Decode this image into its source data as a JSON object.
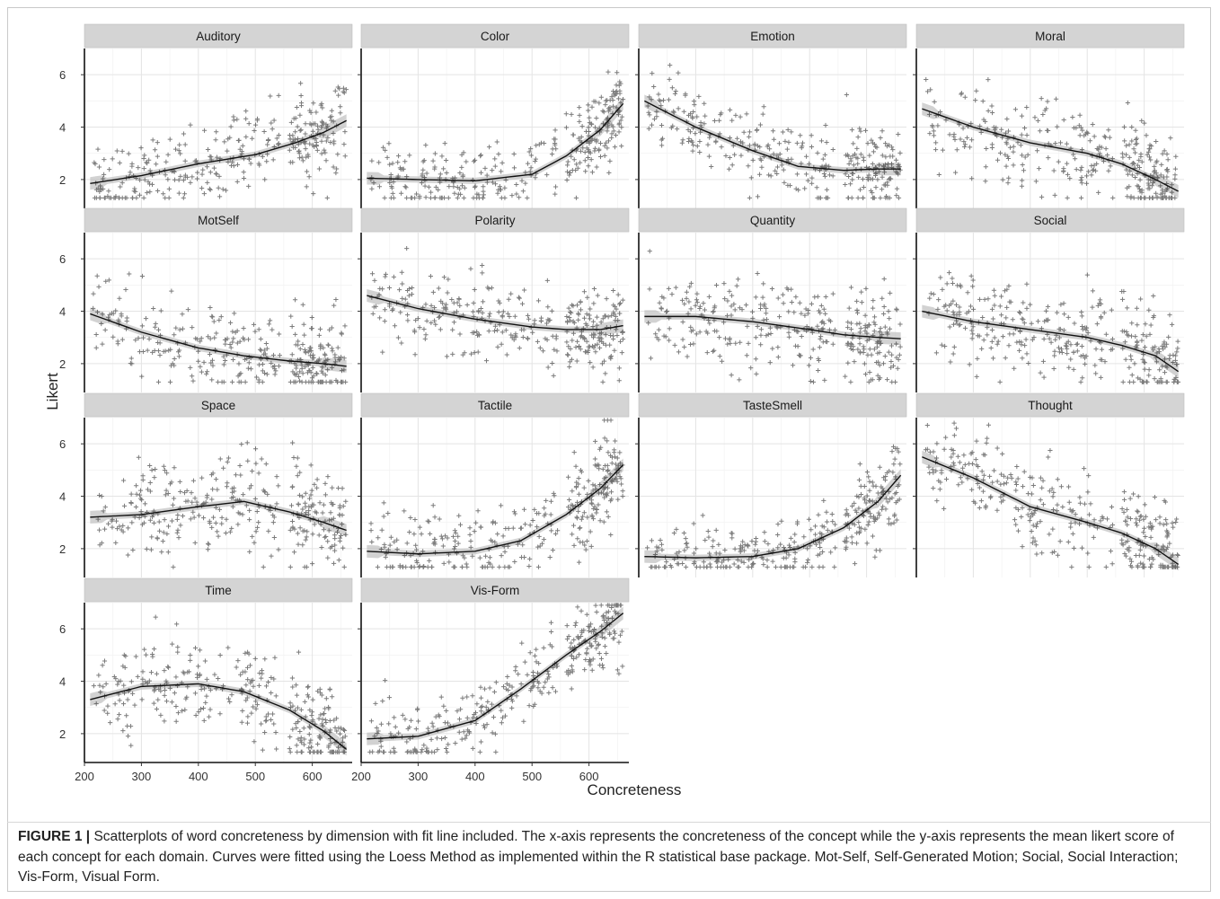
{
  "chart_data": {
    "type": "scatter",
    "title": "",
    "xlabel": "Concreteness",
    "ylabel": "Likert",
    "xlim": [
      200,
      670
    ],
    "ylim": [
      0.9,
      7.0
    ],
    "x_ticks": [
      200,
      300,
      400,
      500,
      600
    ],
    "y_ticks": [
      2,
      4,
      6
    ],
    "grid": true,
    "panels": [
      {
        "name": "Auditory",
        "trend": [
          [
            210,
            1.85
          ],
          [
            300,
            2.15
          ],
          [
            400,
            2.6
          ],
          [
            500,
            2.95
          ],
          [
            570,
            3.4
          ],
          [
            620,
            3.8
          ],
          [
            660,
            4.25
          ]
        ],
        "center": 2.4,
        "spread": 0.9
      },
      {
        "name": "Color",
        "trend": [
          [
            210,
            2.05
          ],
          [
            300,
            2.0
          ],
          [
            400,
            1.95
          ],
          [
            500,
            2.2
          ],
          [
            560,
            2.9
          ],
          [
            620,
            3.9
          ],
          [
            660,
            4.9
          ]
        ],
        "center": 2.3,
        "spread": 0.7
      },
      {
        "name": "Emotion",
        "trend": [
          [
            210,
            5.0
          ],
          [
            300,
            4.0
          ],
          [
            400,
            3.1
          ],
          [
            480,
            2.5
          ],
          [
            560,
            2.35
          ],
          [
            620,
            2.4
          ],
          [
            660,
            2.4
          ]
        ],
        "center": 3.2,
        "spread": 0.8
      },
      {
        "name": "Moral",
        "trend": [
          [
            210,
            4.7
          ],
          [
            300,
            4.0
          ],
          [
            400,
            3.4
          ],
          [
            500,
            3.0
          ],
          [
            560,
            2.6
          ],
          [
            620,
            2.0
          ],
          [
            660,
            1.55
          ]
        ],
        "center": 3.3,
        "spread": 0.9
      },
      {
        "name": "MotSelf",
        "trend": [
          [
            210,
            3.9
          ],
          [
            300,
            3.2
          ],
          [
            400,
            2.6
          ],
          [
            480,
            2.3
          ],
          [
            560,
            2.1
          ],
          [
            620,
            2.0
          ],
          [
            660,
            1.9
          ]
        ],
        "center": 2.8,
        "spread": 0.9
      },
      {
        "name": "Polarity",
        "trend": [
          [
            210,
            4.6
          ],
          [
            300,
            4.1
          ],
          [
            400,
            3.7
          ],
          [
            500,
            3.4
          ],
          [
            560,
            3.3
          ],
          [
            620,
            3.3
          ],
          [
            660,
            3.45
          ]
        ],
        "center": 3.7,
        "spread": 0.8
      },
      {
        "name": "Quantity",
        "trend": [
          [
            210,
            3.8
          ],
          [
            300,
            3.8
          ],
          [
            400,
            3.6
          ],
          [
            500,
            3.3
          ],
          [
            560,
            3.1
          ],
          [
            620,
            3.0
          ],
          [
            660,
            2.95
          ]
        ],
        "center": 3.5,
        "spread": 0.9
      },
      {
        "name": "Social",
        "trend": [
          [
            210,
            4.0
          ],
          [
            300,
            3.6
          ],
          [
            400,
            3.3
          ],
          [
            500,
            3.0
          ],
          [
            560,
            2.7
          ],
          [
            620,
            2.3
          ],
          [
            660,
            1.7
          ]
        ],
        "center": 3.1,
        "spread": 0.9
      },
      {
        "name": "Space",
        "trend": [
          [
            210,
            3.2
          ],
          [
            300,
            3.3
          ],
          [
            400,
            3.6
          ],
          [
            480,
            3.8
          ],
          [
            560,
            3.4
          ],
          [
            620,
            3.0
          ],
          [
            660,
            2.7
          ]
        ],
        "center": 3.4,
        "spread": 0.9
      },
      {
        "name": "Tactile",
        "trend": [
          [
            210,
            1.9
          ],
          [
            300,
            1.8
          ],
          [
            400,
            1.9
          ],
          [
            480,
            2.3
          ],
          [
            560,
            3.3
          ],
          [
            620,
            4.3
          ],
          [
            660,
            5.2
          ]
        ],
        "center": 2.5,
        "spread": 0.8
      },
      {
        "name": "TasteSmell",
        "trend": [
          [
            210,
            1.7
          ],
          [
            300,
            1.65
          ],
          [
            400,
            1.7
          ],
          [
            480,
            2.0
          ],
          [
            560,
            2.8
          ],
          [
            620,
            3.8
          ],
          [
            660,
            4.8
          ]
        ],
        "center": 2.0,
        "spread": 0.7
      },
      {
        "name": "Thought",
        "trend": [
          [
            210,
            5.5
          ],
          [
            300,
            4.7
          ],
          [
            400,
            3.6
          ],
          [
            500,
            3.0
          ],
          [
            560,
            2.6
          ],
          [
            620,
            2.0
          ],
          [
            660,
            1.4
          ]
        ],
        "center": 3.5,
        "spread": 0.9
      },
      {
        "name": "Time",
        "trend": [
          [
            210,
            3.3
          ],
          [
            300,
            3.8
          ],
          [
            400,
            3.9
          ],
          [
            480,
            3.6
          ],
          [
            560,
            2.9
          ],
          [
            620,
            2.1
          ],
          [
            660,
            1.4
          ]
        ],
        "center": 3.3,
        "spread": 0.9
      },
      {
        "name": "Vis-Form",
        "trend": [
          [
            210,
            1.8
          ],
          [
            300,
            1.9
          ],
          [
            400,
            2.5
          ],
          [
            480,
            3.7
          ],
          [
            560,
            5.0
          ],
          [
            620,
            5.9
          ],
          [
            660,
            6.6
          ]
        ],
        "center": 3.3,
        "spread": 0.7
      }
    ],
    "notes": "Each panel: scatter of word concreteness vs mean Likert rating with a Loess fit line and grey confidence band; individual points are approximated."
  },
  "caption": {
    "label": "FIGURE 1 |",
    "text": " Scatterplots of word concreteness by dimension with fit line included. The x-axis represents the concreteness of the concept while the y-axis represents the mean likert score of each concept for each domain. Curves were fitted using the Loess Method as implemented within the R statistical base package. Mot-Self, Self-Generated Motion; Social, Social Interaction; Vis-Form, Visual Form."
  }
}
